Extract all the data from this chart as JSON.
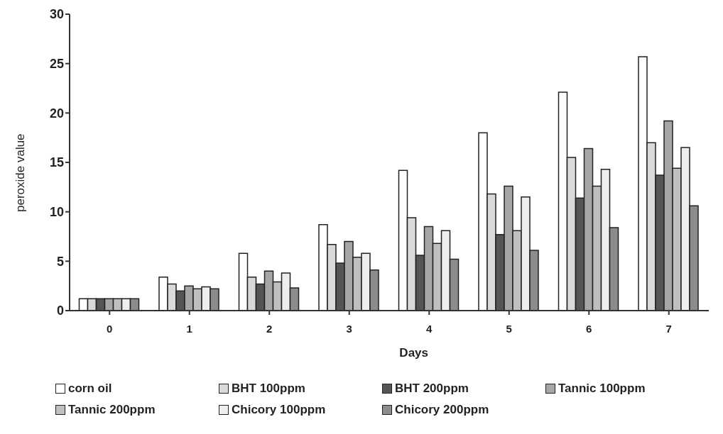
{
  "chart_data": {
    "type": "bar",
    "xlabel": "Days",
    "ylabel": "peroxide value",
    "categories": [
      "0",
      "1",
      "2",
      "3",
      "4",
      "5",
      "6",
      "7"
    ],
    "series": [
      {
        "name": "corn oil",
        "color": "#ffffff",
        "values": [
          1.2,
          3.4,
          5.8,
          8.7,
          14.2,
          18.0,
          22.1,
          25.7
        ]
      },
      {
        "name": "BHT 100ppm",
        "color": "#d9d9d9",
        "values": [
          1.2,
          2.7,
          3.4,
          6.7,
          9.4,
          11.8,
          15.5,
          17.0
        ]
      },
      {
        "name": "BHT 200ppm",
        "color": "#555555",
        "values": [
          1.2,
          2.0,
          2.7,
          4.8,
          5.6,
          7.7,
          11.4,
          13.7
        ]
      },
      {
        "name": "Tannic 100ppm",
        "color": "#a6a6a6",
        "values": [
          1.2,
          2.5,
          4.0,
          7.0,
          8.5,
          12.6,
          16.4,
          19.2
        ]
      },
      {
        "name": "Tannic 200ppm",
        "color": "#bfbfbf",
        "values": [
          1.2,
          2.2,
          2.9,
          5.4,
          6.8,
          8.1,
          12.6,
          14.4
        ]
      },
      {
        "name": "Chicory 100ppm",
        "color": "#eeeeee",
        "values": [
          1.2,
          2.4,
          3.8,
          5.8,
          8.1,
          11.5,
          14.3,
          16.5
        ]
      },
      {
        "name": "Chicory 200ppm",
        "color": "#8c8c8c",
        "values": [
          1.2,
          2.2,
          2.3,
          4.1,
          5.2,
          6.1,
          8.4,
          10.6
        ]
      }
    ],
    "ylim": [
      0,
      30
    ],
    "yticks": [
      0,
      5,
      10,
      15,
      20,
      25,
      30
    ],
    "legend": "bottom"
  }
}
